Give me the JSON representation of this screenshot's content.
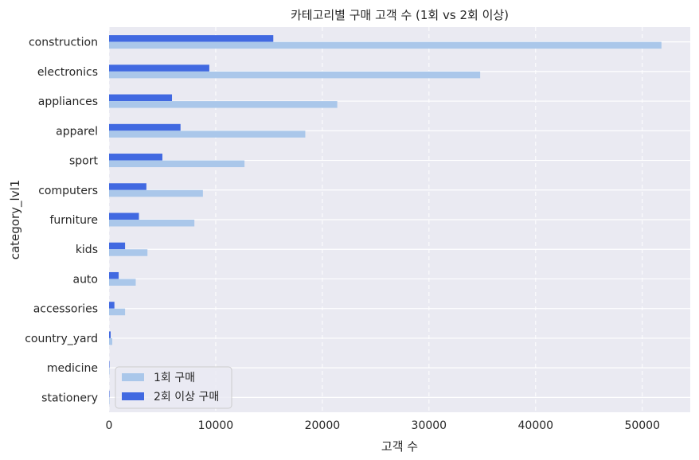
{
  "chart_data": {
    "type": "bar",
    "orientation": "horizontal",
    "title": "카테고리별 구매 고객 수 (1회 vs 2회 이상)",
    "xlabel": "고객 수",
    "ylabel": "category_lvl1",
    "xlim": [
      0,
      54500
    ],
    "xticks": [
      0,
      10000,
      20000,
      30000,
      40000,
      50000
    ],
    "xtick_labels": [
      "0",
      "10000",
      "20000",
      "30000",
      "40000",
      "50000"
    ],
    "grid": true,
    "legend_position": "lower-left",
    "categories": [
      "construction",
      "electronics",
      "appliances",
      "apparel",
      "sport",
      "computers",
      "furniture",
      "kids",
      "auto",
      "accessories",
      "country_yard",
      "medicine",
      "stationery"
    ],
    "series": [
      {
        "name": "1회 구매",
        "color": "#aac7ea",
        "values": [
          51800,
          34800,
          21400,
          18400,
          12700,
          8800,
          8000,
          3600,
          2500,
          1500,
          300,
          30,
          10
        ]
      },
      {
        "name": "2회 이상 구매",
        "color": "#4169e1",
        "values": [
          15400,
          9400,
          5900,
          6700,
          5000,
          3500,
          2800,
          1500,
          900,
          500,
          150,
          10,
          5
        ]
      }
    ],
    "plot_background": "#eaeaf2",
    "grid_color": "#ffffff"
  }
}
